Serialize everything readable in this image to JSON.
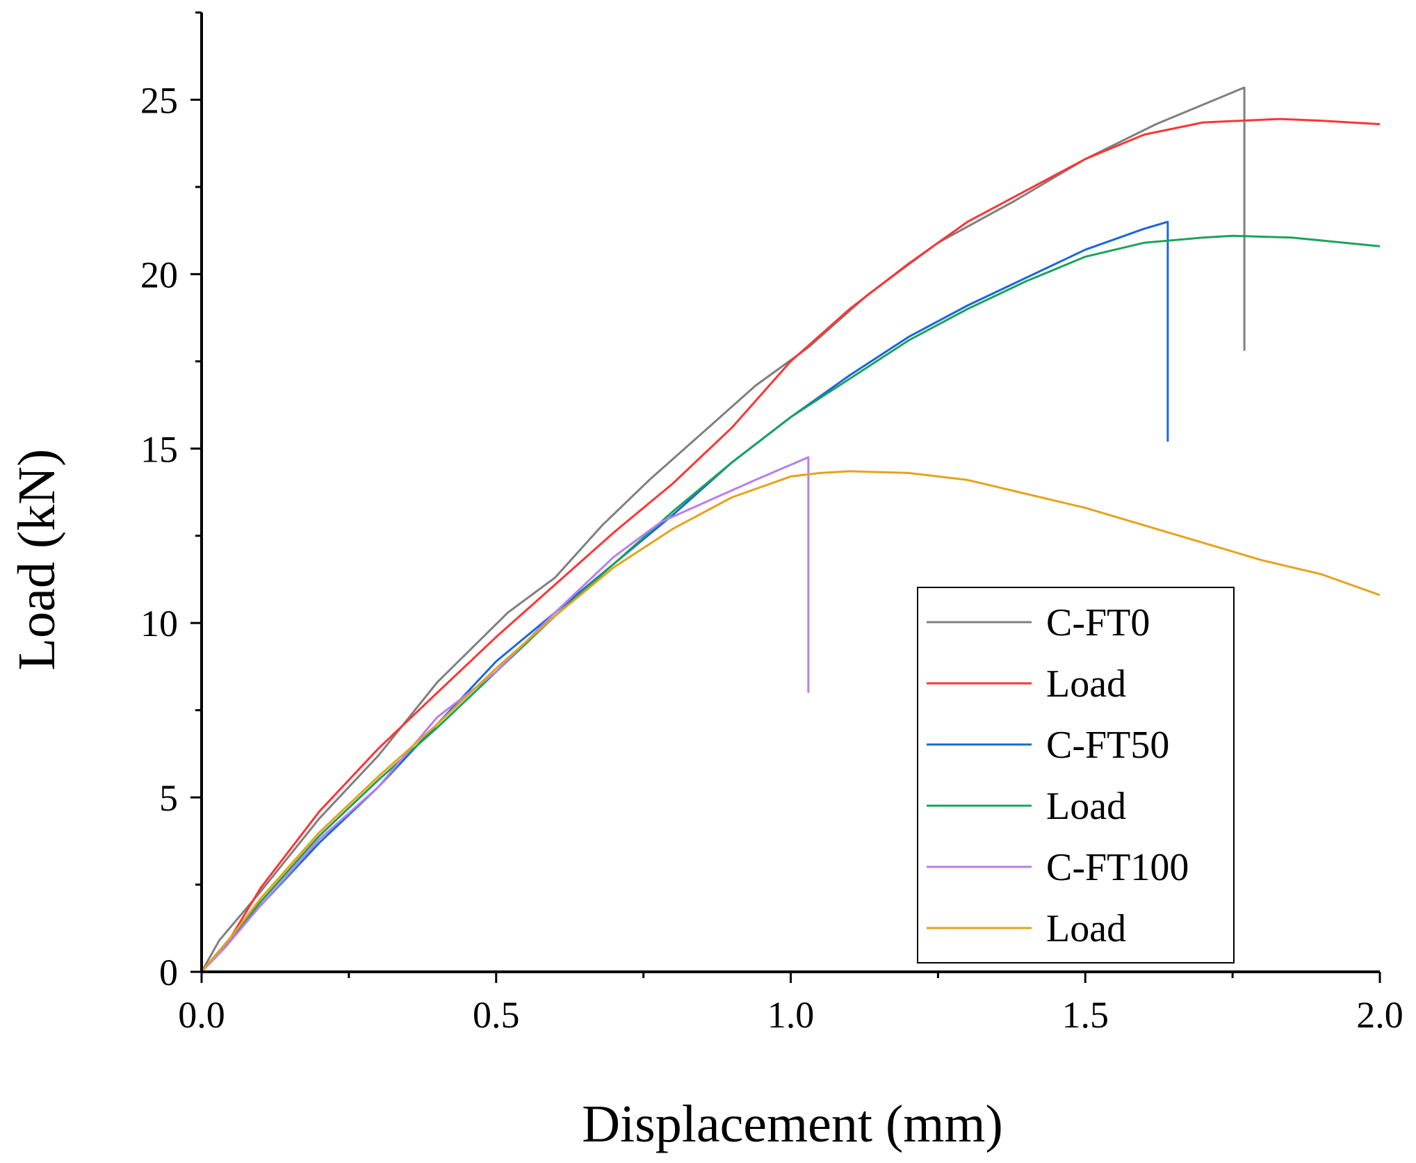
{
  "chart_data": {
    "type": "line",
    "title": "",
    "xlabel": "Displacement (mm)",
    "ylabel": "Load (kN)",
    "xlim": [
      0,
      2.0
    ],
    "ylim": [
      0,
      27.5
    ],
    "xticks": [
      0.0,
      0.5,
      1.0,
      1.5,
      2.0
    ],
    "xtick_labels": [
      "0.0",
      "0.5",
      "1.0",
      "1.5",
      "2.0"
    ],
    "yticks": [
      0,
      5,
      10,
      15,
      20,
      25
    ],
    "ytick_labels": [
      "0",
      "5",
      "10",
      "15",
      "20",
      "25"
    ],
    "grid": false,
    "legend_position": "bottom-right",
    "series": [
      {
        "name": "C-FT0",
        "color": "#7f7f7f",
        "points": [
          [
            0,
            0
          ],
          [
            0.03,
            0.9
          ],
          [
            0.1,
            2.3
          ],
          [
            0.2,
            4.4
          ],
          [
            0.3,
            6.2
          ],
          [
            0.4,
            8.3
          ],
          [
            0.52,
            10.3
          ],
          [
            0.6,
            11.3
          ],
          [
            0.68,
            12.8
          ],
          [
            0.76,
            14.1
          ],
          [
            0.86,
            15.6
          ],
          [
            0.94,
            16.8
          ],
          [
            1.03,
            17.9
          ],
          [
            1.13,
            19.4
          ],
          [
            1.25,
            20.9
          ],
          [
            1.38,
            22.1
          ],
          [
            1.5,
            23.3
          ],
          [
            1.62,
            24.3
          ],
          [
            1.77,
            25.35
          ],
          [
            1.77,
            17.8
          ]
        ]
      },
      {
        "name": "Load",
        "color": "#ff3333",
        "points": [
          [
            0,
            0
          ],
          [
            0.05,
            1.0
          ],
          [
            0.1,
            2.4
          ],
          [
            0.2,
            4.6
          ],
          [
            0.3,
            6.4
          ],
          [
            0.4,
            8.0
          ],
          [
            0.5,
            9.6
          ],
          [
            0.6,
            11.1
          ],
          [
            0.7,
            12.6
          ],
          [
            0.8,
            14.0
          ],
          [
            0.9,
            15.6
          ],
          [
            1.0,
            17.5
          ],
          [
            1.1,
            19.0
          ],
          [
            1.2,
            20.3
          ],
          [
            1.3,
            21.5
          ],
          [
            1.4,
            22.4
          ],
          [
            1.5,
            23.3
          ],
          [
            1.6,
            24.0
          ],
          [
            1.7,
            24.35
          ],
          [
            1.83,
            24.45
          ],
          [
            1.9,
            24.4
          ],
          [
            2.0,
            24.3
          ]
        ]
      },
      {
        "name": "C-FT50",
        "color": "#1a66dd",
        "points": [
          [
            0,
            0
          ],
          [
            0.03,
            0.6
          ],
          [
            0.1,
            1.9
          ],
          [
            0.2,
            3.7
          ],
          [
            0.3,
            5.3
          ],
          [
            0.4,
            7.1
          ],
          [
            0.5,
            8.9
          ],
          [
            0.6,
            10.3
          ],
          [
            0.7,
            11.7
          ],
          [
            0.8,
            13.1
          ],
          [
            0.9,
            14.6
          ],
          [
            1.0,
            15.9
          ],
          [
            1.1,
            17.1
          ],
          [
            1.2,
            18.2
          ],
          [
            1.3,
            19.1
          ],
          [
            1.4,
            19.9
          ],
          [
            1.5,
            20.7
          ],
          [
            1.6,
            21.3
          ],
          [
            1.64,
            21.5
          ],
          [
            1.64,
            15.2
          ]
        ]
      },
      {
        "name": "Load",
        "color": "#1aa35a",
        "points": [
          [
            0,
            0
          ],
          [
            0.05,
            1.0
          ],
          [
            0.1,
            2.0
          ],
          [
            0.2,
            3.9
          ],
          [
            0.3,
            5.5
          ],
          [
            0.4,
            7.0
          ],
          [
            0.5,
            8.6
          ],
          [
            0.6,
            10.2
          ],
          [
            0.7,
            11.7
          ],
          [
            0.8,
            13.2
          ],
          [
            0.9,
            14.6
          ],
          [
            1.0,
            15.9
          ],
          [
            1.1,
            17.0
          ],
          [
            1.2,
            18.1
          ],
          [
            1.3,
            19.0
          ],
          [
            1.4,
            19.8
          ],
          [
            1.5,
            20.5
          ],
          [
            1.6,
            20.9
          ],
          [
            1.7,
            21.05
          ],
          [
            1.75,
            21.1
          ],
          [
            1.85,
            21.05
          ],
          [
            2.0,
            20.8
          ]
        ]
      },
      {
        "name": "C-FT100",
        "color": "#b77ef0",
        "points": [
          [
            0,
            0
          ],
          [
            0.04,
            0.7
          ],
          [
            0.1,
            1.9
          ],
          [
            0.2,
            3.8
          ],
          [
            0.3,
            5.3
          ],
          [
            0.4,
            7.3
          ],
          [
            0.5,
            8.6
          ],
          [
            0.6,
            10.3
          ],
          [
            0.7,
            11.9
          ],
          [
            0.78,
            12.9
          ],
          [
            0.86,
            13.5
          ],
          [
            0.94,
            14.1
          ],
          [
            1.03,
            14.75
          ],
          [
            1.03,
            8.0
          ]
        ]
      },
      {
        "name": "Load",
        "color": "#e6a21a",
        "points": [
          [
            0,
            0
          ],
          [
            0.05,
            1.0
          ],
          [
            0.1,
            2.1
          ],
          [
            0.2,
            4.0
          ],
          [
            0.3,
            5.6
          ],
          [
            0.4,
            7.1
          ],
          [
            0.5,
            8.7
          ],
          [
            0.6,
            10.2
          ],
          [
            0.7,
            11.6
          ],
          [
            0.8,
            12.7
          ],
          [
            0.9,
            13.6
          ],
          [
            1.0,
            14.2
          ],
          [
            1.05,
            14.3
          ],
          [
            1.1,
            14.35
          ],
          [
            1.2,
            14.3
          ],
          [
            1.3,
            14.1
          ],
          [
            1.4,
            13.7
          ],
          [
            1.5,
            13.3
          ],
          [
            1.6,
            12.8
          ],
          [
            1.7,
            12.3
          ],
          [
            1.8,
            11.8
          ],
          [
            1.9,
            11.4
          ],
          [
            2.0,
            10.8
          ]
        ]
      }
    ]
  }
}
